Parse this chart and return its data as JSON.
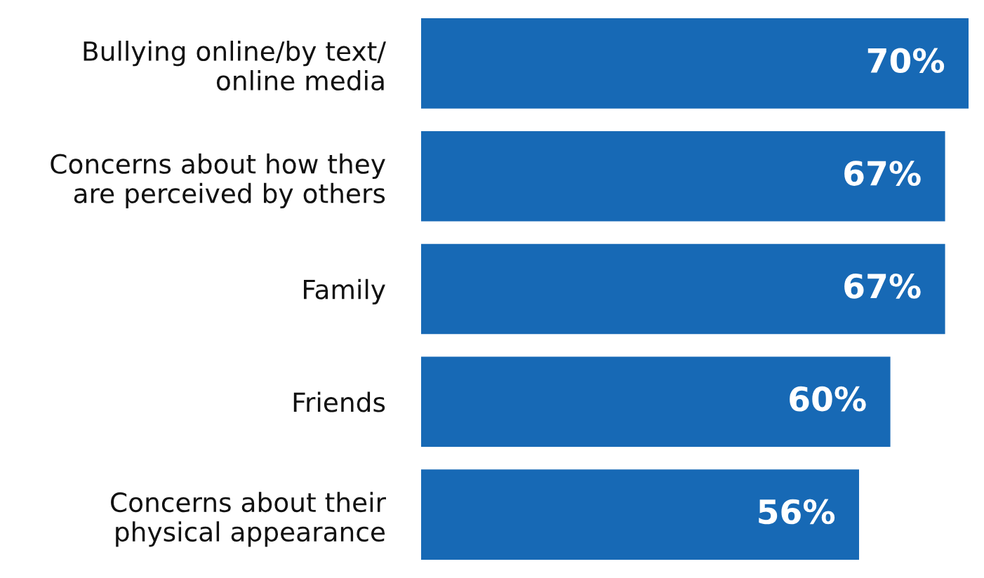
{
  "chart_data": {
    "type": "bar",
    "orientation": "horizontal",
    "categories": [
      "Bullying online/by text/\nonline media",
      "Concerns about how they\nare perceived by others",
      "Family",
      "Friends",
      "Concerns about their\nphysical appearance"
    ],
    "values": [
      70,
      67,
      67,
      60,
      56
    ],
    "value_labels": [
      "70%",
      "67%",
      "67%",
      "60%",
      "56%"
    ],
    "color": "#1769b5",
    "grid": false,
    "legend": false
  }
}
